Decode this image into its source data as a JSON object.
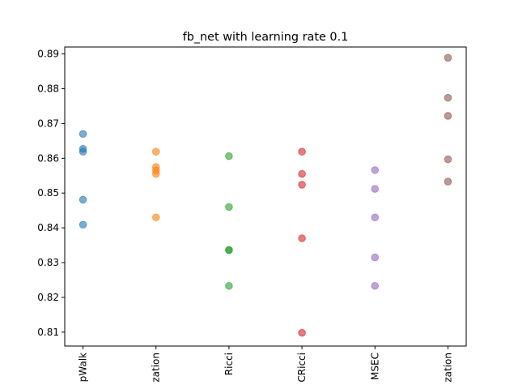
{
  "chart_data": {
    "type": "scatter",
    "title": "fb_net with learning rate 0.1",
    "xlabel": "",
    "ylabel": "",
    "categories": [
      "pWalk",
      "zation",
      "Ricci",
      "CRicci",
      "MSEC",
      "zation"
    ],
    "ylim": [
      0.806,
      0.892
    ],
    "yticks": [
      0.81,
      0.82,
      0.83,
      0.84,
      0.85,
      0.86,
      0.87,
      0.88,
      0.89
    ],
    "ytick_labels": [
      "0.81",
      "0.82",
      "0.83",
      "0.84",
      "0.85",
      "0.86",
      "0.87",
      "0.88",
      "0.89"
    ],
    "grid": false,
    "series": [
      {
        "category_index": 0,
        "color": "#1f77b4",
        "values": [
          0.867,
          0.8627,
          0.8619,
          0.8481,
          0.8409
        ]
      },
      {
        "category_index": 1,
        "color": "#ff7f0e",
        "values": [
          0.8619,
          0.8575,
          0.8565,
          0.8555,
          0.843
        ]
      },
      {
        "category_index": 2,
        "color": "#2ca02c",
        "values": [
          0.8606,
          0.846,
          0.8336,
          0.8336,
          0.8233
        ]
      },
      {
        "category_index": 3,
        "color": "#d62728",
        "values": [
          0.8619,
          0.8555,
          0.8524,
          0.837,
          0.8098
        ]
      },
      {
        "category_index": 4,
        "color": "#9467bd",
        "values": [
          0.8566,
          0.8512,
          0.843,
          0.8315,
          0.8233
        ]
      },
      {
        "category_index": 5,
        "color": "#8c564b",
        "values": [
          0.8889,
          0.8774,
          0.8722,
          0.8597,
          0.8533
        ]
      }
    ]
  }
}
